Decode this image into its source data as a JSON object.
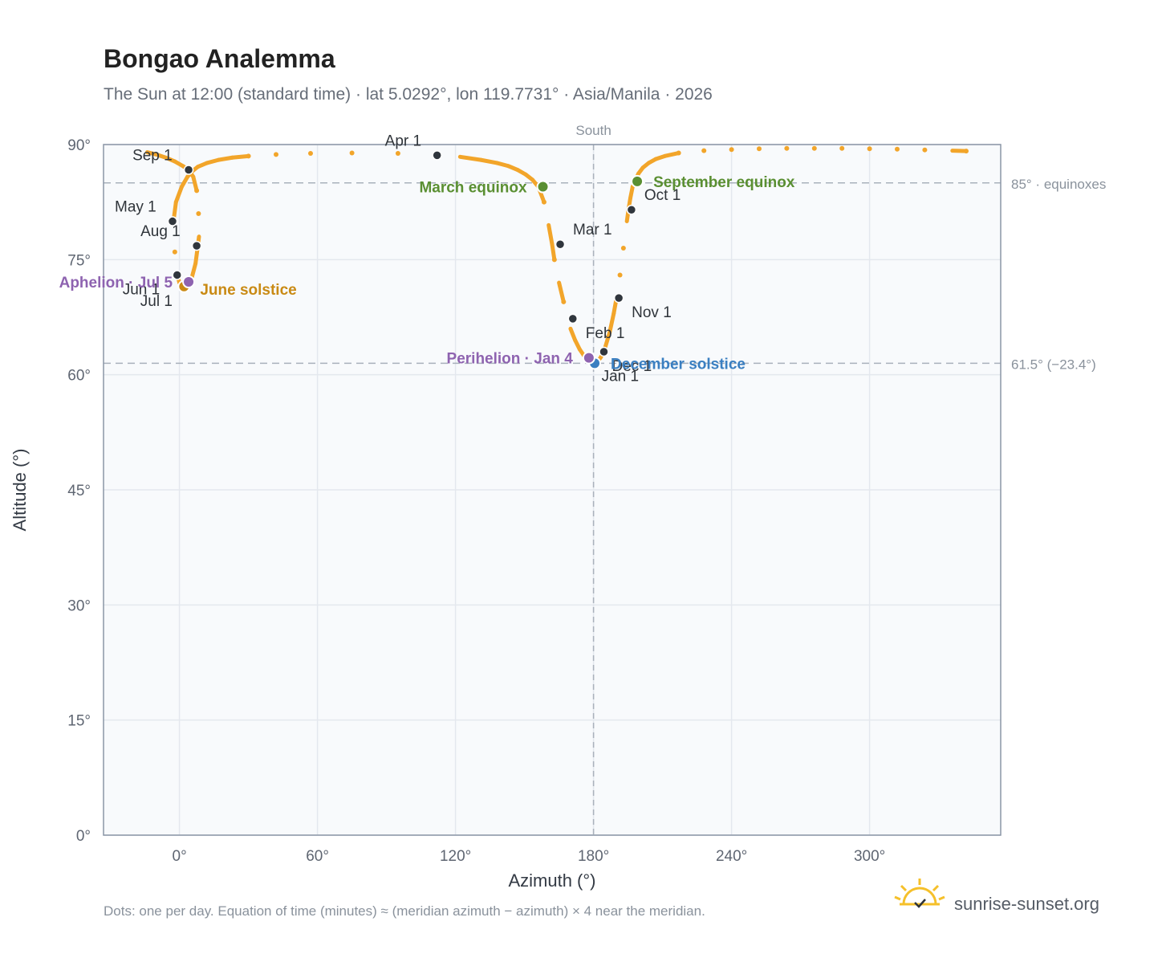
{
  "header": {
    "title": "Bongao Analemma",
    "subtitle": "The Sun at 12:00 (standard time) · lat 5.0292°, lon 119.7731° · Asia/Manila · 2026"
  },
  "footer": {
    "note": "Dots: one per day. Equation of time (minutes) ≈ (meridian azimuth − azimuth) × 4 near the meridian.",
    "brand": "sunrise-sunset.org"
  },
  "colors": {
    "curve": "#f2a52a",
    "month_dot": "#30363d",
    "equinox": "#5a8f32",
    "june_solstice": "#c98a14",
    "december_solstice": "#3a7fc1",
    "apsis": "#8e63b0",
    "plot_bg": "#f8fafc",
    "grid": "#e4e8ee",
    "ref_line": "#a9b1bb"
  },
  "chart_data": {
    "type": "scatter",
    "title": "Bongao Analemma",
    "xlabel": "Azimuth (°)",
    "ylabel": "Altitude (°)",
    "xlim": [
      -33,
      357
    ],
    "ylim": [
      0,
      90
    ],
    "x_ticks": [
      0,
      60,
      120,
      180,
      240,
      300
    ],
    "x_tick_labels": [
      "0°",
      "60°",
      "120°",
      "180°",
      "240°",
      "300°"
    ],
    "y_ticks": [
      0,
      15,
      30,
      45,
      60,
      75,
      90
    ],
    "y_tick_labels": [
      "0°",
      "15°",
      "30°",
      "45°",
      "60°",
      "75°",
      "90°"
    ],
    "grid": true,
    "reference_lines": [
      {
        "axis": "y",
        "value": 85,
        "label": "85° · equinoxes"
      },
      {
        "axis": "y",
        "value": 61.5,
        "label": "61.5° (−23.4°)"
      },
      {
        "axis": "x",
        "value": 180,
        "label": "South"
      }
    ],
    "daily_path": [
      [
        180.0,
        61.5
      ],
      [
        181.5,
        61.7
      ],
      [
        183.0,
        62.2
      ],
      [
        184.5,
        63.0
      ],
      [
        187.0,
        65.5
      ],
      [
        188.8,
        68.0
      ],
      [
        190.0,
        70.0
      ],
      [
        191.5,
        73.0
      ],
      [
        193.0,
        76.5
      ],
      [
        194.5,
        80.0
      ],
      [
        195.2,
        81.5
      ],
      [
        196.0,
        83.0
      ],
      [
        197.0,
        84.5
      ],
      [
        198.0,
        85.2
      ],
      [
        199.5,
        86.2
      ],
      [
        201.5,
        87.0
      ],
      [
        204.0,
        87.6
      ],
      [
        207.0,
        88.1
      ],
      [
        211.0,
        88.5
      ],
      [
        217.0,
        88.9
      ],
      [
        228.0,
        89.2
      ],
      [
        240.0,
        89.35
      ],
      [
        252.0,
        89.45
      ],
      [
        264.0,
        89.5
      ],
      [
        276.0,
        89.5
      ],
      [
        288.0,
        89.5
      ],
      [
        300.0,
        89.45
      ],
      [
        312.0,
        89.4
      ],
      [
        324.0,
        89.3
      ],
      [
        336.0,
        89.2
      ],
      [
        342.0,
        89.15
      ]
    ],
    "path_north_loop": [
      [
        -14.0,
        89.0
      ],
      [
        -10.0,
        88.7
      ],
      [
        -6.0,
        88.3
      ],
      [
        -2.0,
        87.8
      ],
      [
        1.5,
        87.2
      ],
      [
        4.0,
        86.7
      ],
      [
        6.0,
        85.8
      ],
      [
        7.5,
        84.0
      ],
      [
        8.3,
        81.0
      ],
      [
        8.5,
        78.0
      ],
      [
        8.0,
        76.8
      ],
      [
        7.0,
        74.5
      ],
      [
        5.5,
        72.8
      ],
      [
        4.0,
        72.1
      ],
      [
        2.0,
        71.5
      ],
      [
        0.0,
        72.0
      ],
      [
        -1.0,
        73.0
      ],
      [
        -2.0,
        76.0
      ],
      [
        -2.6,
        80.0
      ],
      [
        -1.5,
        82.5
      ],
      [
        1.0,
        84.5
      ],
      [
        3.5,
        85.8
      ],
      [
        5.5,
        86.5
      ],
      [
        8.0,
        87.1
      ],
      [
        12.0,
        87.6
      ],
      [
        17.0,
        88.0
      ],
      [
        23.0,
        88.3
      ],
      [
        30.0,
        88.5
      ],
      [
        42.0,
        88.7
      ],
      [
        57.0,
        88.85
      ],
      [
        75.0,
        88.9
      ],
      [
        95.0,
        88.85
      ],
      [
        111.0,
        88.7
      ],
      [
        122.0,
        88.4
      ],
      [
        131.0,
        88.0
      ],
      [
        138.0,
        87.6
      ],
      [
        143.0,
        87.2
      ],
      [
        147.0,
        86.7
      ],
      [
        150.5,
        86.1
      ],
      [
        153.5,
        85.4
      ],
      [
        156.0,
        84.5
      ],
      [
        158.5,
        82.5
      ],
      [
        160.5,
        79.5
      ],
      [
        162.0,
        77.0
      ],
      [
        163.0,
        75.0
      ],
      [
        165.0,
        72.0
      ],
      [
        167.0,
        69.5
      ],
      [
        170.0,
        66.0
      ],
      [
        172.0,
        64.5
      ],
      [
        174.0,
        63.3
      ],
      [
        176.5,
        62.2
      ],
      [
        178.5,
        61.7
      ],
      [
        180.0,
        61.5
      ]
    ],
    "month_markers": [
      {
        "label": "Jan 1",
        "az": 180.0,
        "alt": 61.5,
        "dx": 10,
        "dy": 22
      },
      {
        "label": "Feb 1",
        "az": 171.0,
        "alt": 67.3,
        "dx": 16,
        "dy": 24
      },
      {
        "label": "Mar 1",
        "az": 165.5,
        "alt": 77.0,
        "dx": 16,
        "dy": -12
      },
      {
        "label": "Apr 1",
        "az": 112.0,
        "alt": 88.6,
        "dx": -65,
        "dy": -12
      },
      {
        "label": "May 1",
        "az": -3.0,
        "alt": 80.0,
        "dx": -72,
        "dy": -12
      },
      {
        "label": "Jun 1",
        "az": -1.0,
        "alt": 73.0,
        "dx": -68,
        "dy": 24
      },
      {
        "label": "Jul 1",
        "az": 2.5,
        "alt": 71.5,
        "dx": -56,
        "dy": 24
      },
      {
        "label": "Aug 1",
        "az": 7.5,
        "alt": 76.8,
        "dx": -70,
        "dy": -12
      },
      {
        "label": "Sep 1",
        "az": 4.0,
        "alt": 86.7,
        "dx": -70,
        "dy": -12
      },
      {
        "label": "Oct 1",
        "az": 196.5,
        "alt": 81.5,
        "dx": 16,
        "dy": -12
      },
      {
        "label": "Nov 1",
        "az": 191.0,
        "alt": 70.0,
        "dx": 16,
        "dy": 24
      },
      {
        "label": "Dec 1",
        "az": 184.5,
        "alt": 63.0,
        "dx": 10,
        "dy": 24
      }
    ],
    "events": [
      {
        "label": "March equinox",
        "az": 158.0,
        "alt": 84.5,
        "color_key": "equinox",
        "anchor": "end",
        "dx": -20,
        "dy": 7
      },
      {
        "label": "September equinox",
        "az": 199.0,
        "alt": 85.2,
        "color_key": "equinox",
        "anchor": "start",
        "dx": 20,
        "dy": 7
      },
      {
        "label": "June solstice",
        "az": 2.0,
        "alt": 71.5,
        "color_key": "june_solstice",
        "anchor": "start",
        "dx": 20,
        "dy": 10
      },
      {
        "label": "December solstice",
        "az": 180.5,
        "alt": 61.5,
        "color_key": "december_solstice",
        "anchor": "start",
        "dx": 20,
        "dy": 7
      },
      {
        "label": "Aphelion · Jul 5",
        "az": 4.0,
        "alt": 72.1,
        "color_key": "apsis",
        "anchor": "end",
        "dx": -20,
        "dy": 7
      },
      {
        "label": "Perihelion · Jan 4",
        "az": 178.0,
        "alt": 62.2,
        "color_key": "apsis",
        "anchor": "end",
        "dx": -20,
        "dy": 7
      }
    ]
  }
}
